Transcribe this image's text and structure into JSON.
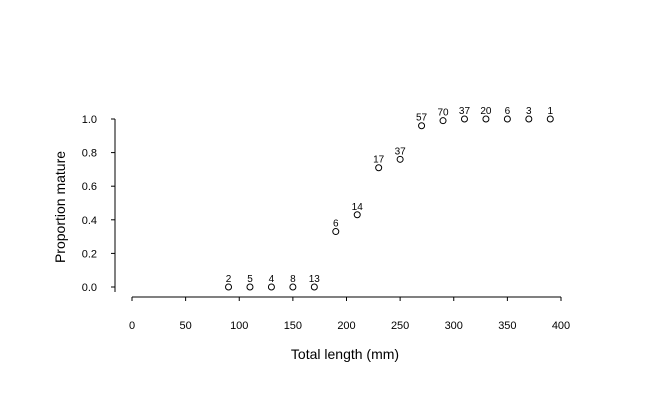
{
  "chart_data": {
    "type": "scatter",
    "xlabel": "Total length (mm)",
    "ylabel": "Proportion mature",
    "xlim": [
      0,
      400
    ],
    "ylim": [
      0,
      1.0
    ],
    "x_ticks": [
      "0",
      "50",
      "100",
      "150",
      "200",
      "250",
      "300",
      "350",
      "400"
    ],
    "y_ticks": [
      "0.0",
      "0.2",
      "0.4",
      "0.6",
      "0.8",
      "1.0"
    ],
    "marker": "open-circle",
    "grid": false,
    "points": [
      {
        "x": 90,
        "y": 0.0,
        "n": "2"
      },
      {
        "x": 110,
        "y": 0.0,
        "n": "5"
      },
      {
        "x": 130,
        "y": 0.0,
        "n": "4"
      },
      {
        "x": 150,
        "y": 0.0,
        "n": "8"
      },
      {
        "x": 170,
        "y": 0.0,
        "n": "13"
      },
      {
        "x": 190,
        "y": 0.33,
        "n": "6"
      },
      {
        "x": 210,
        "y": 0.43,
        "n": "14"
      },
      {
        "x": 230,
        "y": 0.71,
        "n": "17"
      },
      {
        "x": 250,
        "y": 0.76,
        "n": "37"
      },
      {
        "x": 270,
        "y": 0.96,
        "n": "57"
      },
      {
        "x": 290,
        "y": 0.99,
        "n": "70"
      },
      {
        "x": 310,
        "y": 1.0,
        "n": "37"
      },
      {
        "x": 330,
        "y": 1.0,
        "n": "20"
      },
      {
        "x": 350,
        "y": 1.0,
        "n": "6"
      },
      {
        "x": 370,
        "y": 1.0,
        "n": "3"
      },
      {
        "x": 390,
        "y": 1.0,
        "n": "1"
      }
    ]
  }
}
